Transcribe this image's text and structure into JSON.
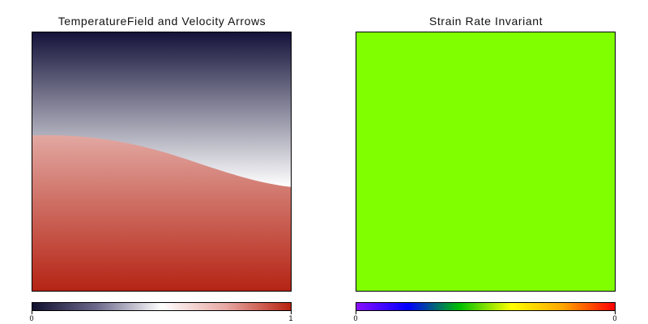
{
  "panels": [
    {
      "title": "TemperatureField and Velocity Arrows",
      "colorbar": {
        "min_label": "0",
        "max_label": "1",
        "colors": [
          "#10102e",
          "#6e6a8c",
          "#ffffff",
          "#e7a7a3",
          "#b8230f"
        ]
      },
      "field_colors": {
        "top": "#14123a",
        "middle": "#ffffff",
        "bottom": "#b52414"
      }
    },
    {
      "title": "Strain Rate Invariant",
      "colorbar": {
        "min_label": "0",
        "max_label": "0",
        "colors": [
          "#8a10ff",
          "#0000ff",
          "#00c000",
          "#ffff00",
          "#ffa500",
          "#ff0000"
        ]
      },
      "field_color": "#80ff00"
    }
  ]
}
